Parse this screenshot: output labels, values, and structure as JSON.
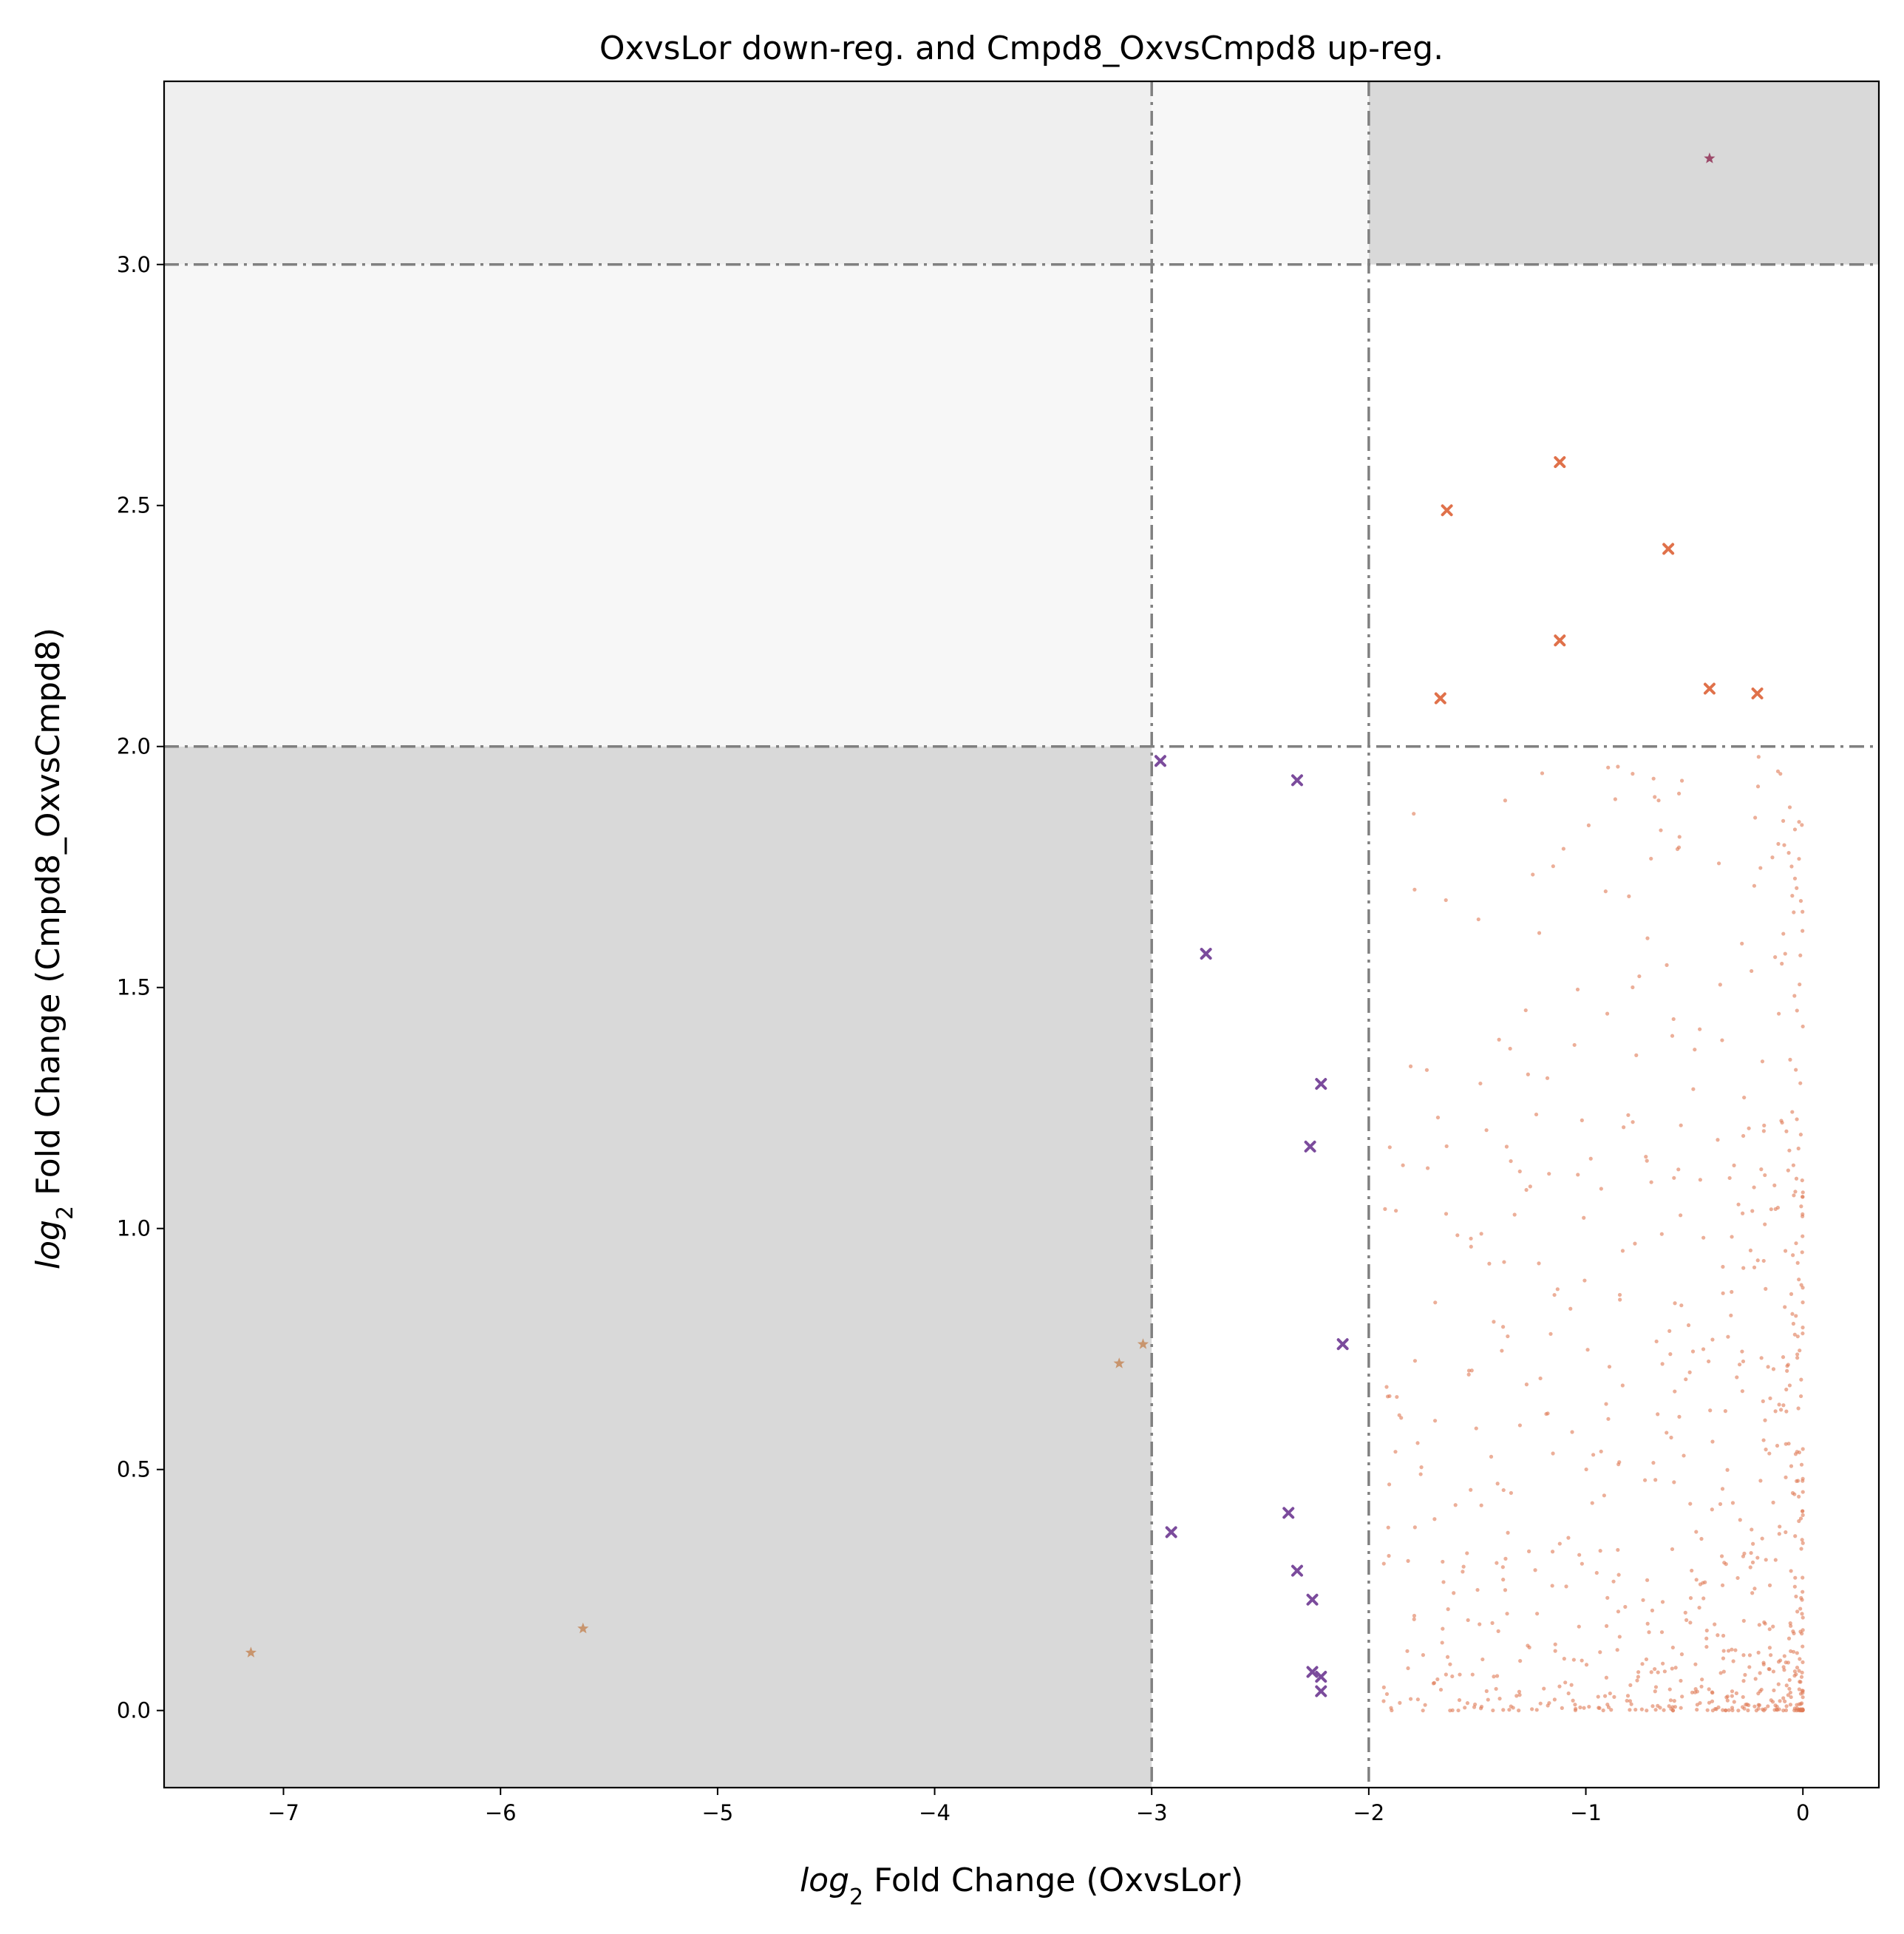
{
  "chart_data": {
    "type": "scatter",
    "title": "OxvsLor down-reg. and Cmpd8_OxvsCmpd8 up-reg.",
    "xlabel": {
      "log_text": "log",
      "sub": "2",
      "rest": " Fold Change (OxvsLor)"
    },
    "ylabel": {
      "log_text": "log",
      "sub": "2",
      "rest": " Fold Change (Cmpd8_OxvsCmpd8)"
    },
    "xlim": [
      -7.55,
      0.35
    ],
    "ylim": [
      -0.16,
      3.38
    ],
    "xticks": [
      -7,
      -6,
      -5,
      -4,
      -3,
      -2,
      -1,
      0
    ],
    "xtick_labels": [
      "−7",
      "−6",
      "−5",
      "−4",
      "−3",
      "−2",
      "−1",
      "0"
    ],
    "yticks": [
      0.0,
      0.5,
      1.0,
      1.5,
      2.0,
      2.5,
      3.0
    ],
    "ytick_labels": [
      "0.0",
      "0.5",
      "1.0",
      "1.5",
      "2.0",
      "2.5",
      "3.0"
    ],
    "threshold_lines": {
      "vertical": [
        -3,
        -2
      ],
      "horizontal": [
        2.0,
        3.0
      ],
      "color": "#808080",
      "style": "dash-dot"
    },
    "shaded_regions": [
      {
        "x": [
          -7.55,
          -3
        ],
        "y": [
          -0.16,
          2.0
        ],
        "color": "#d9d9d9"
      },
      {
        "x": [
          -2,
          0.35
        ],
        "y": [
          3.0,
          3.38
        ],
        "color": "#d9d9d9"
      },
      {
        "x": [
          -7.55,
          -3
        ],
        "y": [
          3.0,
          3.38
        ],
        "color": "#efefef"
      },
      {
        "x": [
          -7.55,
          -3
        ],
        "y": [
          2.0,
          3.0
        ],
        "color": "#f7f7f7"
      },
      {
        "x": [
          -3,
          -2
        ],
        "y": [
          3.0,
          3.38
        ],
        "color": "#f7f7f7"
      }
    ],
    "grid": false,
    "legend": "none",
    "series": [
      {
        "marker": "x",
        "color": "#7b4b9c",
        "points": [
          [
            -2.96,
            1.97
          ],
          [
            -2.33,
            1.93
          ],
          [
            -2.75,
            1.57
          ],
          [
            -2.22,
            1.3
          ],
          [
            -2.27,
            1.17
          ],
          [
            -2.12,
            0.76
          ],
          [
            -2.91,
            0.37
          ],
          [
            -2.37,
            0.41
          ],
          [
            -2.33,
            0.29
          ],
          [
            -2.26,
            0.23
          ],
          [
            -2.26,
            0.08
          ],
          [
            -2.22,
            0.07
          ],
          [
            -2.22,
            0.04
          ]
        ]
      },
      {
        "marker": "x",
        "color": "#e0714a",
        "points": [
          [
            -1.12,
            2.59
          ],
          [
            -1.64,
            2.49
          ],
          [
            -0.62,
            2.41
          ],
          [
            -1.12,
            2.22
          ],
          [
            -1.67,
            2.1
          ],
          [
            -0.43,
            2.12
          ],
          [
            -0.21,
            2.11
          ]
        ]
      },
      {
        "marker": "star",
        "color": "#c8956e",
        "points": [
          [
            -7.15,
            0.12
          ],
          [
            -5.62,
            0.17
          ],
          [
            -3.15,
            0.72
          ],
          [
            -3.04,
            0.76
          ]
        ]
      },
      {
        "marker": "star",
        "color": "#9c4a6a",
        "points": [
          [
            -0.43,
            3.22
          ]
        ]
      },
      {
        "marker": "dot",
        "color": "#e07a55",
        "n_points": 760,
        "x_range": [
          -1.95,
          0.0
        ],
        "y_range": [
          0.0,
          1.98
        ],
        "density": "concentrated near x=0, y=0"
      }
    ],
    "colors": {
      "threshold": "#808080",
      "shade_dark": "#d9d9d9",
      "shade_mid": "#efefef",
      "shade_light": "#f7f7f7"
    }
  }
}
